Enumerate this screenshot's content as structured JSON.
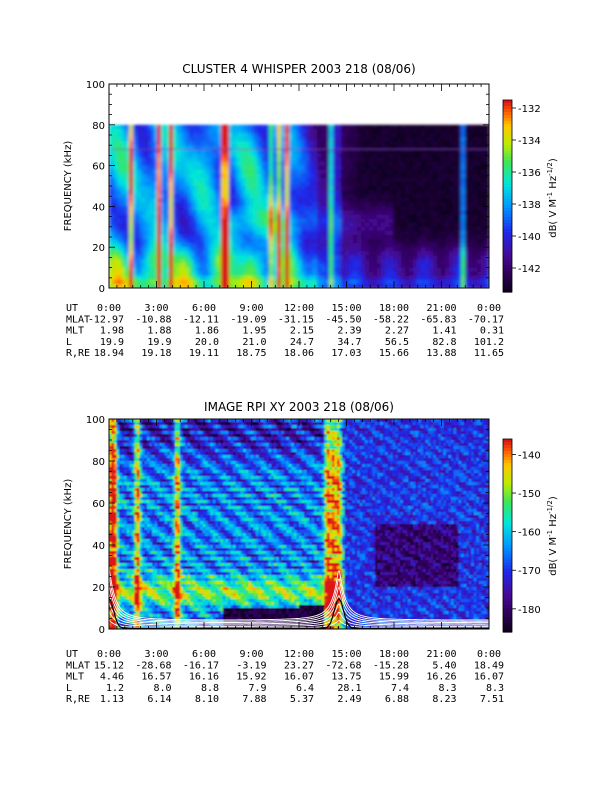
{
  "chart_data": [
    {
      "type": "heatmap",
      "title": "CLUSTER 4 WHISPER 2003 218 (08/06)",
      "ylabel": "FREQUENCY (kHz)",
      "ylim": [
        0,
        100
      ],
      "yticks": [
        "0",
        "20",
        "40",
        "60",
        "80",
        "100"
      ],
      "data_ceiling_khz": 80,
      "xlim_hours": [
        0,
        24
      ],
      "xticks": [
        "0:00",
        "3:00",
        "6:00",
        "9:00",
        "12:00",
        "15:00",
        "18:00",
        "21:00",
        "0:00"
      ],
      "colorbar": {
        "label": "dB( V M⁻¹ Hz⁻¹ᐟ²)",
        "label_parts": [
          "dB( V M",
          "-1",
          " Hz",
          "-1/2",
          ")"
        ],
        "range": [
          -143.5,
          -131.5
        ],
        "ticks": [
          "-132",
          "-134",
          "-136",
          "-138",
          "-140",
          "-142"
        ],
        "tick_values": [
          -132,
          -134,
          -136,
          -138,
          -140,
          -142
        ]
      },
      "ephemeris": {
        "labels": [
          "UT",
          "MLAT",
          "MLT",
          "L",
          "R,RE"
        ],
        "columns": [
          [
            "0:00",
            "-12.97",
            "1.98",
            "19.9",
            "18.94"
          ],
          [
            "3:00",
            "-10.88",
            "1.88",
            "19.9",
            "19.18"
          ],
          [
            "6:00",
            "-12.11",
            "1.86",
            "20.0",
            "19.11"
          ],
          [
            "9:00",
            "-19.09",
            "1.95",
            "21.0",
            "18.75"
          ],
          [
            "12:00",
            "-31.15",
            "2.15",
            "24.7",
            "18.06"
          ],
          [
            "15:00",
            "-45.50",
            "2.39",
            "34.7",
            "17.03"
          ],
          [
            "18:00",
            "-58.22",
            "2.27",
            "56.5",
            "15.66"
          ],
          [
            "21:00",
            "-65.83",
            "1.41",
            "82.8",
            "13.88"
          ],
          [
            "0:00",
            "-70.17",
            "0.31",
            "101.2",
            "11.65"
          ]
        ]
      }
    },
    {
      "type": "heatmap",
      "title": "IMAGE RPI XY 2003 218 (08/06)",
      "ylabel": "FREQUENCY (kHz)",
      "ylim": [
        0,
        100
      ],
      "yticks": [
        "0",
        "20",
        "40",
        "60",
        "80",
        "100"
      ],
      "xlim_hours": [
        0,
        24
      ],
      "xticks": [
        "0:00",
        "3:00",
        "6:00",
        "9:00",
        "12:00",
        "15:00",
        "18:00",
        "21:00",
        "0:00"
      ],
      "overlay": "white gyrofrequency harmonic curves and black plasma frequency curve",
      "colorbar": {
        "label": "dB( V M⁻¹ Hz⁻¹ᐟ²)",
        "label_parts": [
          "dB( V M",
          "-1",
          " Hz",
          "-1/2",
          ")"
        ],
        "range": [
          -186,
          -136
        ],
        "ticks": [
          "-140",
          "-150",
          "-160",
          "-170",
          "-180"
        ],
        "tick_values": [
          -140,
          -150,
          -160,
          -170,
          -180
        ]
      },
      "ephemeris": {
        "labels": [
          "UT",
          "MLAT",
          "MLT",
          "L",
          "R,RE"
        ],
        "columns": [
          [
            "0:00",
            "15.12",
            "4.46",
            "1.2",
            "1.13"
          ],
          [
            "3:00",
            "-28.68",
            "16.57",
            "8.0",
            "6.14"
          ],
          [
            "6:00",
            "-16.17",
            "16.16",
            "8.8",
            "8.10"
          ],
          [
            "9:00",
            "-3.19",
            "15.92",
            "7.9",
            "7.88"
          ],
          [
            "12:00",
            "23.27",
            "16.07",
            "6.4",
            "5.37"
          ],
          [
            "15:00",
            "-72.68",
            "13.75",
            "28.1",
            "2.49"
          ],
          [
            "18:00",
            "-15.28",
            "15.99",
            "7.4",
            "6.88"
          ],
          [
            "21:00",
            "5.40",
            "16.26",
            "8.3",
            "8.23"
          ],
          [
            "0:00",
            "18.49",
            "16.07",
            "8.3",
            "7.51"
          ]
        ]
      }
    }
  ]
}
